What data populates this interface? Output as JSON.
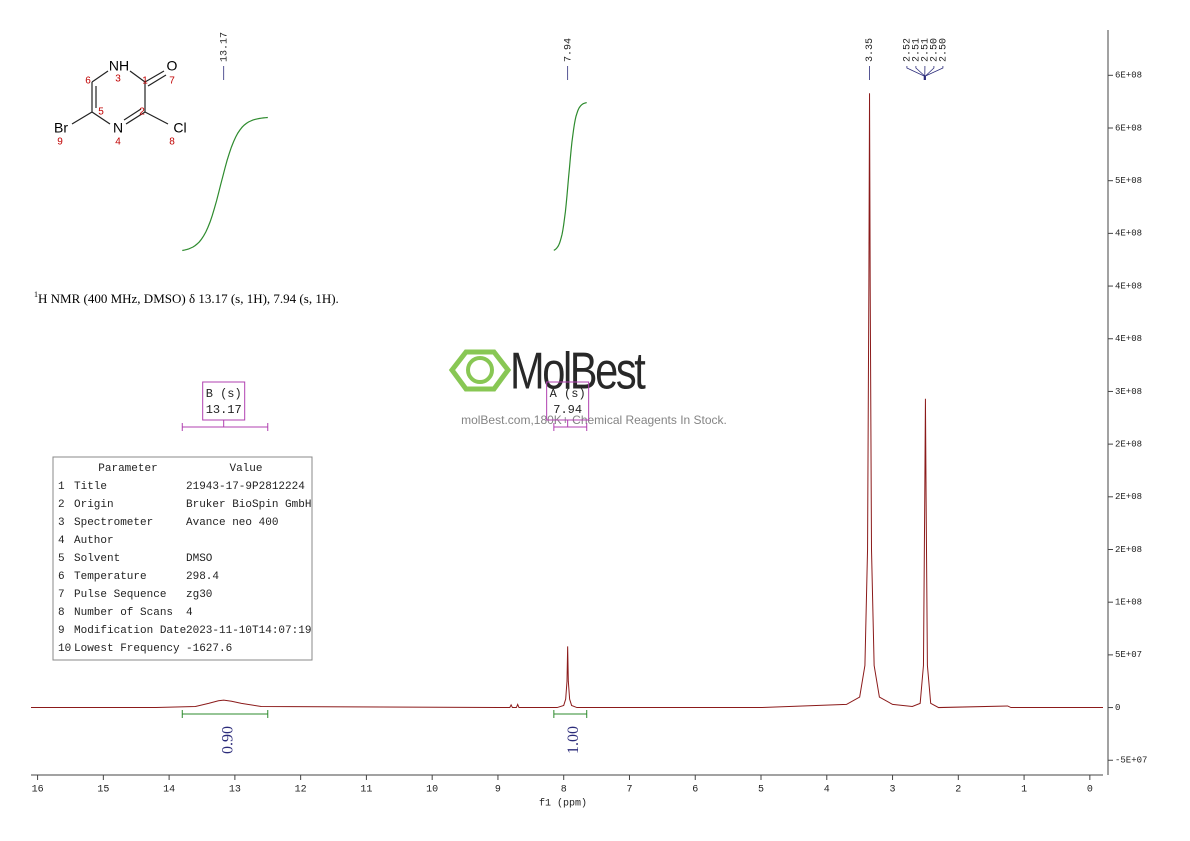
{
  "chart_data": {
    "type": "line",
    "x_label": "f1 (ppm)",
    "xlim": [
      16.1,
      -0.2
    ],
    "xticks": [
      16,
      15,
      14,
      13,
      12,
      11,
      10,
      9,
      8,
      7,
      6,
      5,
      4,
      3,
      2,
      1,
      0
    ],
    "ylim": [
      -64000000,
      643000000
    ],
    "yticks": [
      {
        "value": -50000000,
        "label": "-5E+07"
      },
      0,
      {
        "value": 50000000,
        "label": "5E+07"
      },
      {
        "value": 100000000,
        "label": "1E+08"
      },
      {
        "value": 150000000,
        "label": "2E+08"
      },
      {
        "value": 200000000,
        "label": "2E+08"
      },
      {
        "value": 250000000,
        "label": "2E+08"
      },
      {
        "value": 300000000,
        "label": "3E+08"
      },
      {
        "value": 350000000,
        "label": "4E+08"
      },
      {
        "value": 400000000,
        "label": "4E+08"
      },
      {
        "value": 450000000,
        "label": "4E+08"
      },
      {
        "value": 500000000,
        "label": "5E+08"
      },
      {
        "value": 550000000,
        "label": "6E+08"
      },
      {
        "value": 600000000,
        "label": "6E+08"
      }
    ],
    "series": [
      {
        "color": "#8b1a1a",
        "x": [
          16.1,
          14.2,
          13.6,
          13.4,
          13.25,
          13.17,
          13.05,
          12.9,
          12.6,
          9.0,
          8.82,
          8.8,
          8.78,
          8.72,
          8.7,
          8.68,
          8.1,
          8.0,
          7.97,
          7.95,
          7.94,
          7.93,
          7.91,
          7.88,
          7.8,
          5.0,
          3.7,
          3.5,
          3.42,
          3.38,
          3.36,
          3.35,
          3.34,
          3.32,
          3.28,
          3.2,
          3.0,
          2.7,
          2.58,
          2.53,
          2.51,
          2.5,
          2.49,
          2.47,
          2.42,
          2.3,
          1.25,
          1.2,
          1.15,
          -0.2
        ],
        "values": [
          0,
          0,
          1000000,
          4000000,
          6500000,
          7000000,
          6000000,
          4000000,
          1000000,
          0,
          0,
          2500000,
          0,
          0,
          3000000,
          0,
          0,
          2000000,
          8000000,
          25000000,
          58000000,
          25000000,
          8000000,
          2000000,
          0,
          0,
          3000000,
          10000000,
          40000000,
          150000000,
          400000000,
          583000000,
          400000000,
          150000000,
          40000000,
          10000000,
          3000000,
          1000000,
          4000000,
          40000000,
          200000000,
          293000000,
          200000000,
          40000000,
          4000000,
          0,
          1500000,
          0,
          0,
          0
        ]
      }
    ],
    "peaks": [
      {
        "value": 13.17,
        "label": "13.17"
      },
      {
        "value": 7.94,
        "label": "7.94"
      },
      {
        "value": 3.35,
        "label": "3.35"
      },
      {
        "value": 2.52,
        "label": "2.52"
      },
      {
        "value": 2.51,
        "label": "2.51"
      },
      {
        "value": 2.51,
        "label": "2.51"
      },
      {
        "value": 2.5,
        "label": "2.50"
      },
      {
        "value": 2.5,
        "label": "2.50"
      }
    ],
    "integrals": [
      {
        "from": 13.8,
        "to": 12.5,
        "value": 0.9,
        "label": "0.90"
      },
      {
        "from": 8.15,
        "to": 7.65,
        "value": 1,
        "label": "1.00"
      }
    ],
    "multiplets": [
      {
        "name": "B (s)",
        "shift": 13.17,
        "from": 13.8,
        "to": 12.5
      },
      {
        "name": "A (s)",
        "shift": 7.94,
        "from": 8.15,
        "to": 7.65
      }
    ],
    "annotation": {
      "superscript": "1",
      "text": "H NMR (400 MHz, DMSO) δ 13.17 (s, 1H), 7.94 (s, 1H)."
    }
  },
  "molecule": {
    "atoms": [
      {
        "symbol": "NH",
        "number": 3
      },
      {
        "symbol": "O",
        "number": 7
      },
      {
        "symbol": "Br",
        "number": 9
      },
      {
        "symbol": "N",
        "number": 4
      },
      {
        "symbol": "Cl",
        "number": 8
      }
    ],
    "carbons": [
      6,
      1,
      5,
      2
    ]
  },
  "table": {
    "header": [
      "Parameter",
      "Value"
    ],
    "rows": [
      [
        1,
        "Title",
        "21943-17-9P2812224"
      ],
      [
        2,
        "Origin",
        "Bruker BioSpin GmbH"
      ],
      [
        3,
        "Spectrometer",
        "Avance neo 400"
      ],
      [
        4,
        "Author",
        ""
      ],
      [
        5,
        "Solvent",
        "DMSO"
      ],
      [
        6,
        "Temperature",
        298.4
      ],
      [
        7,
        "Pulse Sequence",
        "zg30"
      ],
      [
        8,
        "Number of Scans",
        4
      ],
      [
        9,
        "Modification Date",
        "2023-11-10T14:07:19"
      ],
      [
        10,
        "Lowest Frequency",
        -1627.6
      ]
    ]
  },
  "watermark": {
    "brand": "MolBest",
    "tagline": "molBest.com,180K+ Chemical Reagents In Stock."
  }
}
